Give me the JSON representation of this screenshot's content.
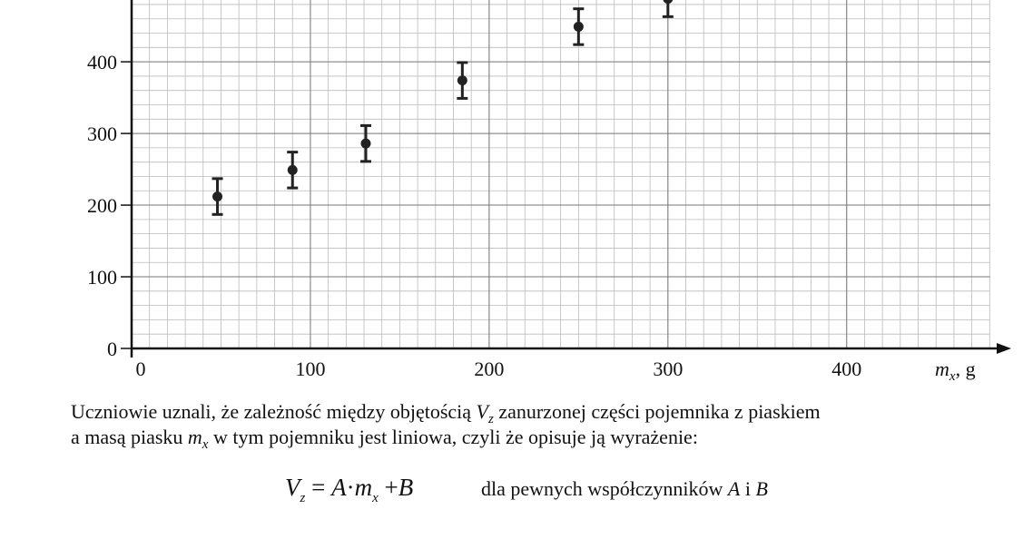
{
  "chart_data": {
    "type": "scatter",
    "x": [
      48,
      90,
      131,
      185,
      250,
      300
    ],
    "values": [
      212,
      249,
      286,
      374,
      449,
      488
    ],
    "errors": [
      25,
      25,
      25,
      25,
      25,
      25
    ],
    "color": "#222222",
    "xlim": [
      0,
      490
    ],
    "ylim": [
      0,
      485
    ],
    "xticks": [
      0,
      100,
      200,
      300,
      400
    ],
    "yticks": [
      0,
      100,
      200,
      300,
      400
    ],
    "x_minor_step": 10,
    "y_minor_step": 20,
    "grid": true,
    "xlabel": [
      "m",
      "x",
      ", g"
    ]
  },
  "text": {
    "line1": [
      "Uczniowie uznali, że zależność między objętością ",
      "V",
      "z",
      " zanurzonej części pojemnika z piaskiem"
    ],
    "line2": [
      "a masą piasku ",
      "m",
      "x",
      " w tym pojemniku jest liniowa, czyli że opisuje ją wyrażenie:"
    ],
    "formula": [
      "V",
      "z",
      " = ",
      "A",
      "·",
      "m",
      "x",
      " +",
      "B"
    ],
    "condition": [
      "dla pewnych współczynników ",
      "A",
      " i ",
      "B"
    ]
  }
}
